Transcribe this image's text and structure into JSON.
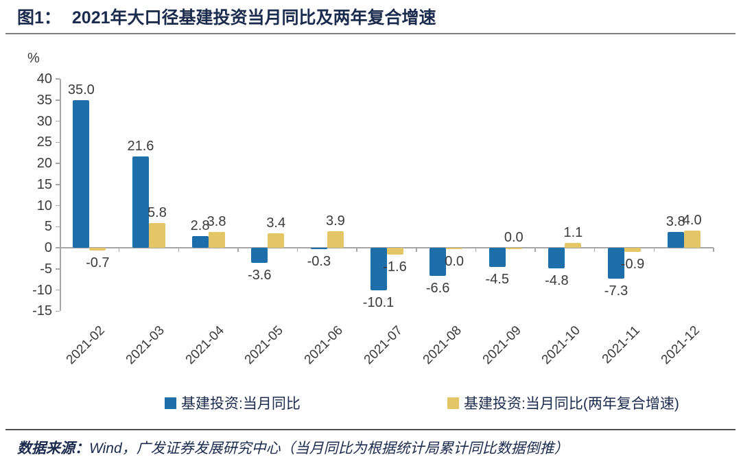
{
  "figure": {
    "label": "图1：",
    "title": "2021年大口径基建投资当月同比及两年复合增速"
  },
  "chart_data": {
    "type": "bar",
    "title": "2021年大口径基建投资当月同比及两年复合增速",
    "unit_label": "%",
    "xlabel": "",
    "ylabel": "%",
    "ylim": [
      -15,
      40
    ],
    "ytick_step": 5,
    "grid": "off",
    "legend_position": "bottom",
    "categories": [
      "2021-02",
      "2021-03",
      "2021-04",
      "2021-05",
      "2021-06",
      "2021-07",
      "2021-08",
      "2021-09",
      "2021-10",
      "2021-11",
      "2021-12"
    ],
    "series": [
      {
        "name": "基建投资:当月同比",
        "color": "#1E6FA9",
        "values": [
          35.0,
          21.6,
          2.8,
          -3.6,
          -0.3,
          -10.1,
          -6.6,
          -4.5,
          -4.8,
          -7.3,
          3.8
        ]
      },
      {
        "name": "基建投资:当月同比(两年复合增速)",
        "color": "#E4C667",
        "values": [
          -0.7,
          5.8,
          3.8,
          3.4,
          3.9,
          -1.6,
          0.0,
          0.0,
          1.1,
          -0.9,
          4.0
        ],
        "draw_values": [
          -0.7,
          5.8,
          3.8,
          3.4,
          3.9,
          -1.6,
          -0.4,
          -0.4,
          1.1,
          -0.9,
          4.0
        ],
        "label_sides": [
          "below",
          "above",
          "above",
          "above",
          "above",
          "below",
          "below",
          "above",
          "above",
          "below",
          "above"
        ]
      }
    ]
  },
  "footer": {
    "source_prefix": "数据来源：",
    "source_text": "Wind，广发证券发展研究中心（当月同比为根据统计局累计同比数据倒推）"
  }
}
